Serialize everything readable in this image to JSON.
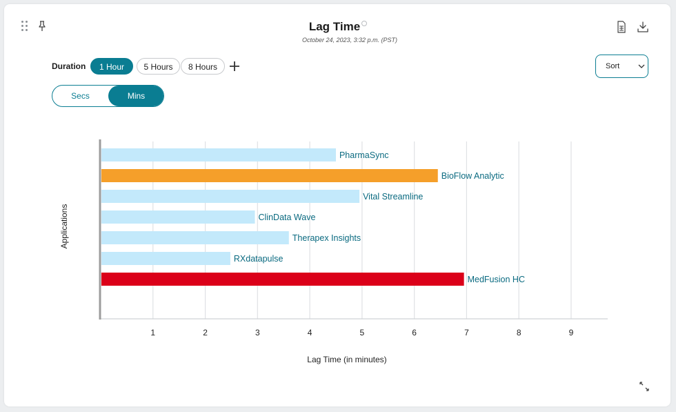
{
  "header": {
    "title": "Lag Time",
    "subtitle": "October 24, 2023, 3:32 p.m. (PST)",
    "icons": [
      "drag-handle-icon",
      "pin-icon",
      "info-icon",
      "csv-file-icon",
      "download-icon",
      "expand-icon"
    ]
  },
  "controls": {
    "duration_label": "Duration",
    "duration_options": [
      "1 Hour",
      "5 Hours",
      "8 Hours"
    ],
    "duration_selected": "1 Hour",
    "unit_options": [
      "Secs",
      "Mins"
    ],
    "unit_selected": "Mins",
    "sort_label": "Sort"
  },
  "colors": {
    "accent": "#0a7d92",
    "bar_default": "#c3e9fb",
    "bar_warning": "#f59f2a",
    "bar_critical": "#db0019",
    "bar_label": "#0a6a80"
  },
  "chart_data": {
    "type": "bar",
    "orientation": "horizontal",
    "xlabel": "Lag Time (in minutes)",
    "ylabel": "Applications",
    "xlim": [
      0,
      9.7
    ],
    "xticks": [
      1,
      2,
      3,
      4,
      5,
      6,
      7,
      8,
      9
    ],
    "grid": "vertical",
    "categories": [
      "PharmaSync",
      "BioFlow Analytic",
      "Vital Streamline",
      "ClinData Wave",
      "Therapex Insights",
      "RXdatapulse",
      "MedFusion HC"
    ],
    "values": [
      4.5,
      6.45,
      4.95,
      2.95,
      3.6,
      2.48,
      6.95
    ],
    "status": [
      "normal",
      "warning",
      "normal",
      "normal",
      "normal",
      "normal",
      "critical"
    ]
  }
}
